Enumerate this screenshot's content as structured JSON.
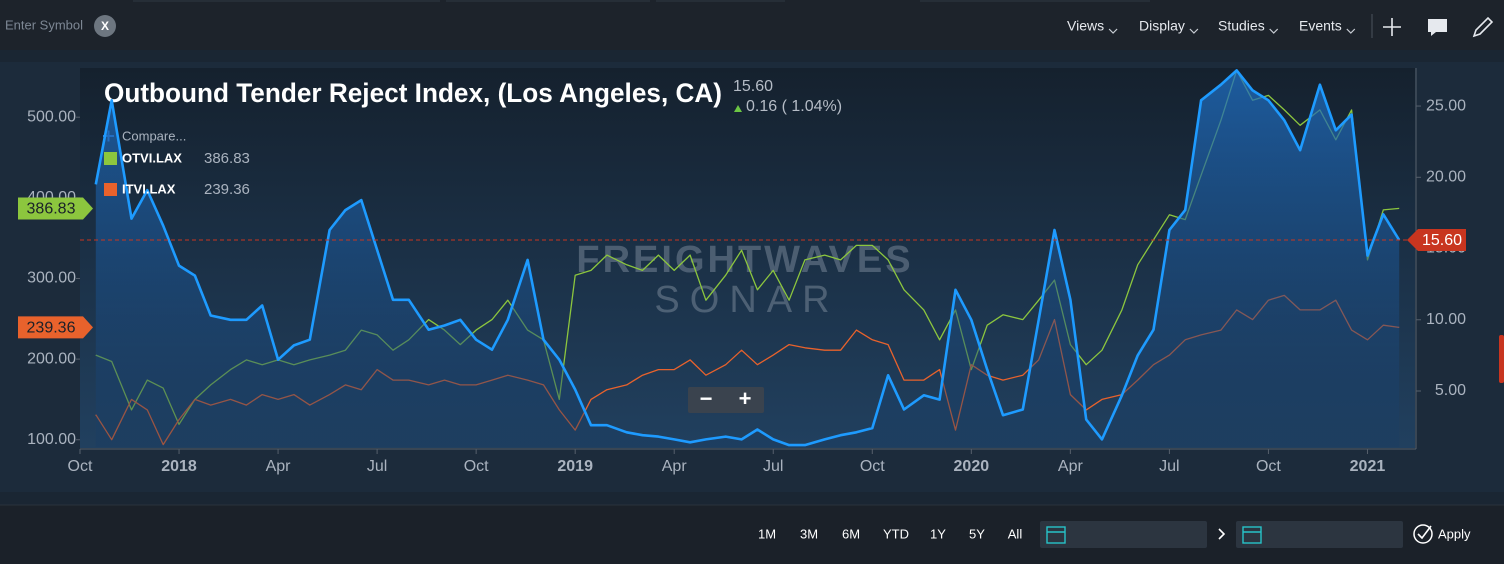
{
  "toolbar": {
    "symbol_placeholder": "Enter Symbol",
    "clear": "X",
    "menus": [
      "Views",
      "Display",
      "Studies",
      "Events"
    ]
  },
  "chart_data": {
    "type": "line",
    "title": "Outbound Tender Reject Index, (Los Angeles, CA)",
    "price": "15.60",
    "change": "0.16 ( 1.04%)",
    "compare": "Compare...",
    "watermark": [
      "FREIGHTWAVES",
      "SONAR"
    ],
    "price_line_color": "#c8351f",
    "x": [
      2017.79,
      2017.83,
      2017.88,
      2017.92,
      2017.96,
      2018.0,
      2018.04,
      2018.08,
      2018.13,
      2018.17,
      2018.21,
      2018.25,
      2018.29,
      2018.33,
      2018.38,
      2018.42,
      2018.46,
      2018.5,
      2018.54,
      2018.58,
      2018.63,
      2018.67,
      2018.71,
      2018.75,
      2018.79,
      2018.83,
      2018.88,
      2018.92,
      2018.96,
      2019.0,
      2019.04,
      2019.08,
      2019.13,
      2019.17,
      2019.21,
      2019.25,
      2019.29,
      2019.33,
      2019.38,
      2019.42,
      2019.46,
      2019.5,
      2019.54,
      2019.58,
      2019.63,
      2019.67,
      2019.71,
      2019.75,
      2019.79,
      2019.83,
      2019.88,
      2019.92,
      2019.96,
      2020.0,
      2020.04,
      2020.08,
      2020.13,
      2020.17,
      2020.21,
      2020.25,
      2020.29,
      2020.33,
      2020.38,
      2020.42,
      2020.46,
      2020.5,
      2020.54,
      2020.58,
      2020.63,
      2020.67,
      2020.71,
      2020.75,
      2020.79,
      2020.83,
      2020.88,
      2020.92,
      2020.96,
      2021.0,
      2021.04,
      2021.08
    ],
    "series": [
      {
        "name": "OTVI.LAX",
        "color": "#8cc63e",
        "axis": "y",
        "values": [
          205,
          197,
          137,
          174,
          164,
          119,
          150,
          168,
          187,
          199,
          193,
          199,
          193,
          199,
          205,
          211,
          236,
          230,
          211,
          224,
          249,
          236,
          218,
          236,
          249,
          273,
          236,
          224,
          150,
          304,
          310,
          329,
          317,
          310,
          329,
          310,
          329,
          273,
          304,
          335,
          286,
          310,
          273,
          323,
          329,
          323,
          341,
          341,
          323,
          286,
          261,
          224,
          261,
          187,
          242,
          255,
          249,
          273,
          298,
          218,
          193,
          211,
          261,
          317,
          348,
          379,
          373,
          428,
          496,
          558,
          521,
          527,
          509,
          490,
          509,
          472,
          509,
          323,
          385,
          386.83
        ]
      },
      {
        "name": "ITVI.LAX",
        "color": "#e8622c",
        "axis": "y",
        "values": [
          131,
          100,
          150,
          137,
          94,
          125,
          150,
          143,
          150,
          143,
          156,
          150,
          156,
          143,
          156,
          168,
          162,
          187,
          174,
          174,
          168,
          174,
          168,
          168,
          174,
          180,
          174,
          168,
          137,
          112,
          150,
          162,
          168,
          180,
          187,
          187,
          199,
          180,
          193,
          211,
          193,
          205,
          218,
          214,
          211,
          211,
          236,
          224,
          218,
          174,
          174,
          187,
          112,
          193,
          180,
          174,
          180,
          199,
          249,
          156,
          137,
          150,
          156,
          174,
          193,
          205,
          224,
          230,
          236,
          261,
          249,
          273,
          279,
          261,
          261,
          273,
          236,
          224,
          242,
          239.36
        ]
      },
      {
        "color": "#1e9bff",
        "axis": "y2",
        "values": [
          19.5,
          25.4,
          17.1,
          19.1,
          16.6,
          13.8,
          13.1,
          10.3,
          10.0,
          10.0,
          11.0,
          7.2,
          8.2,
          8.6,
          16.3,
          17.7,
          18.4,
          14.9,
          11.4,
          11.4,
          9.3,
          9.6,
          10.0,
          8.6,
          7.9,
          10.0,
          14.2,
          8.6,
          7.2,
          5.1,
          2.6,
          2.6,
          2.1,
          1.9,
          1.8,
          1.6,
          1.4,
          1.6,
          1.8,
          1.6,
          2.3,
          1.6,
          1.2,
          1.2,
          1.6,
          1.9,
          2.1,
          2.4,
          6.1,
          3.7,
          4.7,
          4.4,
          12.1,
          10.0,
          6.5,
          3.3,
          3.7,
          10.0,
          16.3,
          11.4,
          3.0,
          1.6,
          4.7,
          7.5,
          9.3,
          16.3,
          17.7,
          25.4,
          26.5,
          27.5,
          26.1,
          25.4,
          24.0,
          21.9,
          26.5,
          23.3,
          24.4,
          14.5,
          17.4,
          15.6
        ]
      }
    ],
    "xlim": [
      2017.75,
      2021.12
    ],
    "xticks": [
      {
        "value": 2017.75,
        "label": "Oct"
      },
      2018,
      {
        "value": 2018.25,
        "label": "Apr"
      },
      {
        "value": 2018.5,
        "label": "Jul"
      },
      {
        "value": 2018.75,
        "label": "Oct"
      },
      2019,
      {
        "value": 2019.25,
        "label": "Apr"
      },
      {
        "value": 2019.5,
        "label": "Jul"
      },
      {
        "value": 2019.75,
        "label": "Oct"
      },
      2020,
      {
        "value": 2020.25,
        "label": "Apr"
      },
      {
        "value": 2020.5,
        "label": "Jul"
      },
      {
        "value": 2020.75,
        "label": "Oct"
      },
      2021
    ],
    "ylim": [
      91,
      561
    ],
    "yticks": [
      {
        "value": 100,
        "label": "100.00"
      },
      {
        "value": 200,
        "label": "200.00"
      },
      {
        "value": 300,
        "label": "300.00"
      },
      {
        "value": 400,
        "label": "400.00"
      },
      {
        "value": 500,
        "label": "500.00"
      }
    ],
    "y2lim": [
      1.07,
      27.67
    ],
    "y2ticks": [
      {
        "value": 5,
        "label": "5.00"
      },
      {
        "value": 10,
        "label": "10.00"
      },
      {
        "value": 15,
        "label": "15.00"
      },
      {
        "value": 20,
        "label": "20.00"
      },
      {
        "value": 25,
        "label": "25.00"
      }
    ],
    "grid": false
  },
  "zoom": [
    "−",
    "+"
  ],
  "footer": {
    "ranges": [
      "1M",
      "3M",
      "6M",
      "YTD",
      "1Y",
      "5Y",
      "All"
    ],
    "apply": "Apply"
  }
}
